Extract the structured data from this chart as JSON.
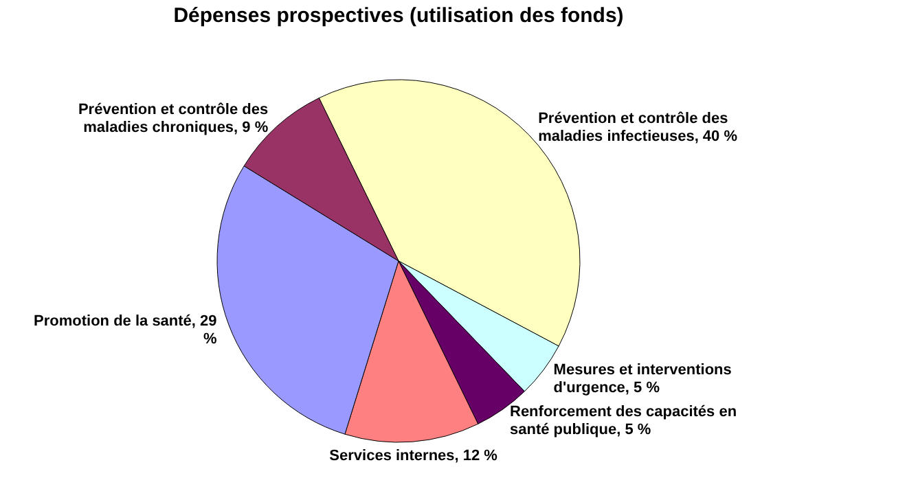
{
  "chart_data": {
    "type": "pie",
    "title": "Dépenses prospectives (utilisation des fonds)",
    "categories": [
      "Prévention et contrôle des maladies infectieuses",
      "Mesures et interventions d'urgence",
      "Renforcement des capacités en santé publique",
      "Services internes",
      "Promotion de la santé",
      "Prévention et contrôle des maladies chroniques"
    ],
    "values": [
      40,
      5,
      5,
      12,
      29,
      9
    ],
    "value_labels": [
      "40 %",
      "5 %",
      "5 %",
      "12 %",
      "29 %",
      "9 %"
    ],
    "colors": [
      "#ffffc0",
      "#ccffff",
      "#660066",
      "#ff8080",
      "#9999ff",
      "#993366"
    ]
  }
}
